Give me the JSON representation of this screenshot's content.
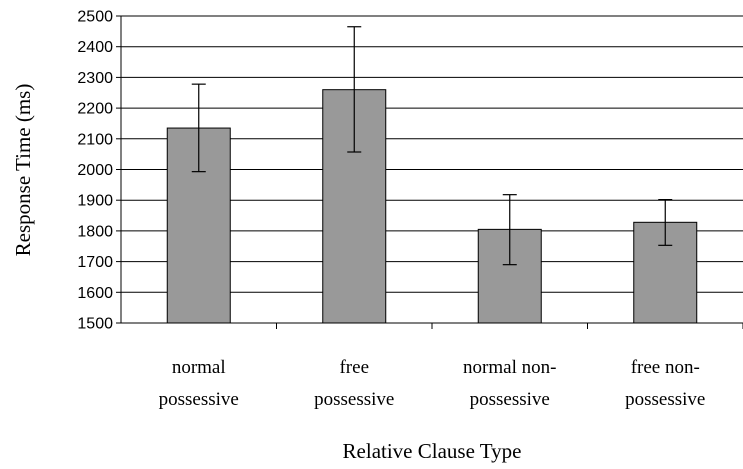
{
  "chart_data": {
    "type": "bar",
    "categories": [
      [
        "normal",
        "possessive"
      ],
      [
        "free",
        "possessive"
      ],
      [
        "normal non-",
        "possessive"
      ],
      [
        "free non-",
        "possessive"
      ]
    ],
    "values": [
      2135,
      2260,
      1805,
      1828
    ],
    "error_bars": [
      {
        "low": 1993,
        "high": 2278
      },
      {
        "low": 2057,
        "high": 2465
      },
      {
        "low": 1690,
        "high": 1918
      },
      {
        "low": 1753,
        "high": 1902
      }
    ],
    "xlabel": "Relative Clause Type",
    "ylabel": "Response Time (ms)",
    "ylim": [
      1500,
      2500
    ],
    "yticks": [
      1500,
      1600,
      1700,
      1800,
      1900,
      2000,
      2100,
      2200,
      2300,
      2400,
      2500
    ],
    "grid": true,
    "bar_color": "#999999"
  }
}
